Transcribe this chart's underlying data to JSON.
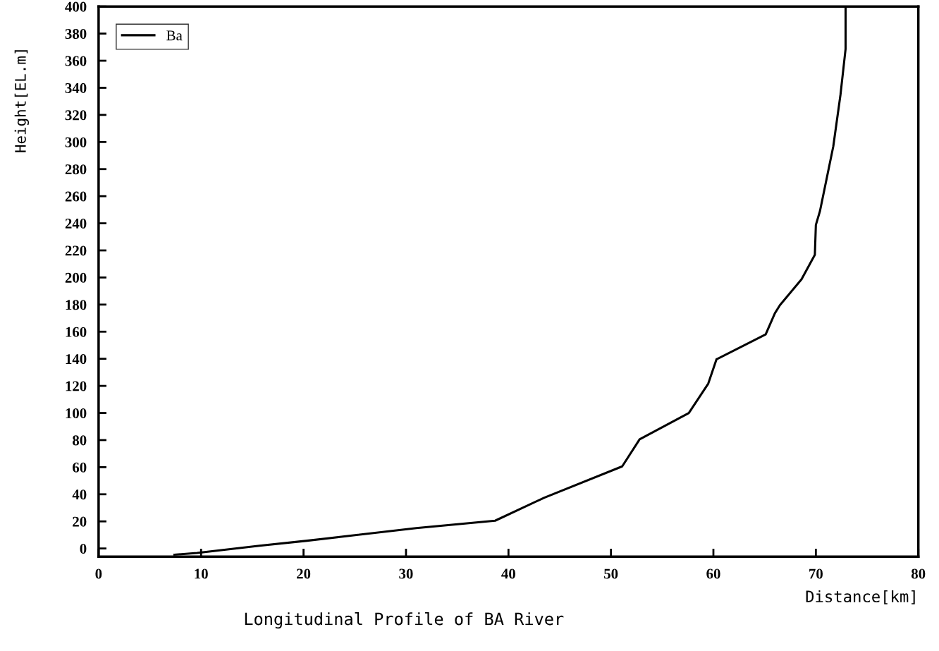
{
  "chart_data": {
    "type": "line",
    "title": "Longitudinal Profile of BA River",
    "xlabel": "Distance[km]",
    "ylabel": "Height[EL.m]",
    "series": [
      {
        "name": "Ba",
        "color": "#000000",
        "x": [
          7.4,
          9.6,
          15.7,
          20.2,
          31,
          38.7,
          43.5,
          51.1,
          52.8,
          57.6,
          59.5,
          60.3,
          65.1,
          66.0,
          66.5,
          68.6,
          69.9,
          70.0,
          70.4,
          71.7,
          72.4,
          72.9,
          72.9
        ],
        "values": [
          -4.6,
          -3.3,
          2,
          5.6,
          15,
          20.5,
          37.5,
          60.6,
          80.6,
          100,
          121.7,
          139.6,
          158,
          173.6,
          179.7,
          198.7,
          216.7,
          238.8,
          249,
          296.8,
          334.8,
          368.7,
          400
        ]
      }
    ],
    "xlim": [
      0,
      80
    ],
    "xticks": [
      0,
      10,
      20,
      30,
      40,
      50,
      60,
      70,
      80
    ],
    "ylim": [
      -6,
      400
    ],
    "yticks": [
      0,
      20,
      40,
      60,
      80,
      100,
      120,
      140,
      160,
      180,
      200,
      220,
      240,
      260,
      280,
      300,
      320,
      340,
      360,
      380,
      400
    ],
    "grid": false,
    "legend": "top left",
    "marker": "none",
    "line_style": "solid"
  }
}
